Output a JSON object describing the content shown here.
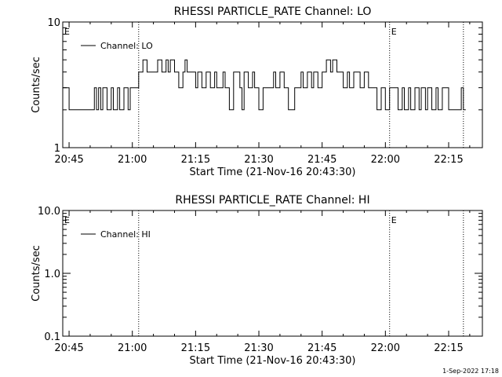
{
  "footer": {
    "date_stamp": "1-Sep-2022 17:18"
  },
  "chart_data": [
    {
      "type": "line",
      "title": "RHESSI PARTICLE_RATE Channel: LO",
      "xlabel": "Start Time (21-Nov-16 20:43:30)",
      "ylabel": "Counts/sec",
      "y_scale": "log",
      "ylim": [
        1,
        10
      ],
      "yticks": [
        {
          "v": 1,
          "label": "1"
        },
        {
          "v": 10,
          "label": "10"
        }
      ],
      "xlim": [
        "20:43:30",
        "22:23:00"
      ],
      "xticks": [
        "20:45",
        "21:00",
        "21:15",
        "21:30",
        "21:45",
        "22:00",
        "22:15"
      ],
      "legend": "top-left",
      "vlines": [
        "21:01:30",
        "22:01:00",
        "22:18:30"
      ],
      "markers": [
        {
          "text": "E",
          "x": "20:43:30"
        },
        {
          "text": "E",
          "x": "22:01:00"
        }
      ],
      "series": [
        {
          "name": "Channel: LO",
          "step": true,
          "x": [
            "20:43:30",
            "20:45:00",
            "20:51:00",
            "20:51:30",
            "20:52:00",
            "20:52:30",
            "20:53:00",
            "20:53:30",
            "20:54:00",
            "20:55:00",
            "20:55:30",
            "20:56:30",
            "20:57:00",
            "20:58:00",
            "20:59:00",
            "20:59:30",
            "21:01:30",
            "21:02:30",
            "21:03:30",
            "21:04:30",
            "21:06:00",
            "21:07:00",
            "21:08:00",
            "21:08:30",
            "21:09:00",
            "21:10:00",
            "21:10:30",
            "21:11:00",
            "21:12:00",
            "21:12:30",
            "21:13:00",
            "21:14:00",
            "21:15:00",
            "21:15:30",
            "21:16:30",
            "21:17:30",
            "21:18:30",
            "21:19:30",
            "21:20:00",
            "21:21:30",
            "21:22:00",
            "21:23:00",
            "21:24:00",
            "21:25:30",
            "21:26:00",
            "21:26:30",
            "21:27:30",
            "21:28:30",
            "21:29:00",
            "21:30:00",
            "21:31:00",
            "21:31:30",
            "21:32:30",
            "21:33:30",
            "21:34:00",
            "21:35:00",
            "21:36:00",
            "21:37:00",
            "21:38:30",
            "21:39:00",
            "21:40:00",
            "21:40:30",
            "21:41:30",
            "21:42:30",
            "21:43:00",
            "21:44:00",
            "21:45:00",
            "21:46:00",
            "21:47:00",
            "21:47:30",
            "21:48:30",
            "21:49:00",
            "21:50:00",
            "21:51:00",
            "21:51:30",
            "21:52:30",
            "21:53:30",
            "21:54:00",
            "21:55:00",
            "21:56:00",
            "21:57:00",
            "21:58:00",
            "21:59:00",
            "22:00:00",
            "22:01:00",
            "22:03:00",
            "22:04:00",
            "22:04:30",
            "22:05:30",
            "22:06:00",
            "22:07:00",
            "22:08:00",
            "22:08:30",
            "22:09:30",
            "22:10:00",
            "22:11:00",
            "22:12:00",
            "22:12:30",
            "22:13:30",
            "22:15:00",
            "22:16:00",
            "22:18:00",
            "22:18:30"
          ],
          "y": [
            3,
            2,
            3,
            2,
            3,
            2,
            3,
            3,
            2,
            3,
            2,
            3,
            2,
            3,
            2,
            3,
            4,
            5,
            4,
            4,
            5,
            4,
            5,
            4,
            5,
            4,
            4,
            3,
            4,
            5,
            4,
            4,
            3,
            4,
            3,
            4,
            3,
            4,
            3,
            4,
            3,
            2,
            4,
            3,
            2,
            4,
            3,
            4,
            3,
            2,
            3,
            3,
            3,
            4,
            3,
            4,
            3,
            2,
            3,
            3,
            4,
            3,
            4,
            3,
            4,
            3,
            4,
            5,
            4,
            5,
            4,
            4,
            3,
            4,
            3,
            4,
            4,
            3,
            4,
            3,
            3,
            2,
            3,
            2,
            3,
            2,
            3,
            2,
            3,
            2,
            3,
            2,
            3,
            2,
            3,
            2,
            3,
            2,
            3,
            2,
            2,
            3,
            2
          ]
        }
      ]
    },
    {
      "type": "line",
      "title": "RHESSI PARTICLE_RATE Channel: HI",
      "xlabel": "Start Time (21-Nov-16 20:43:30)",
      "ylabel": "Counts/sec",
      "y_scale": "log",
      "ylim": [
        0.1,
        10
      ],
      "yticks": [
        {
          "v": 0.1,
          "label": "0.1"
        },
        {
          "v": 1,
          "label": "1.0"
        },
        {
          "v": 10,
          "label": "10.0"
        }
      ],
      "xlim": [
        "20:43:30",
        "22:23:00"
      ],
      "xticks": [
        "20:45",
        "21:00",
        "21:15",
        "21:30",
        "21:45",
        "22:00",
        "22:15"
      ],
      "legend": "top-left",
      "vlines": [
        "21:01:30",
        "22:01:00",
        "22:18:30"
      ],
      "markers": [
        {
          "text": "E",
          "x": "20:43:30"
        },
        {
          "text": "E",
          "x": "22:01:00"
        }
      ],
      "series": [
        {
          "name": "Channel: HI",
          "step": true,
          "x": [],
          "y": []
        }
      ]
    }
  ]
}
